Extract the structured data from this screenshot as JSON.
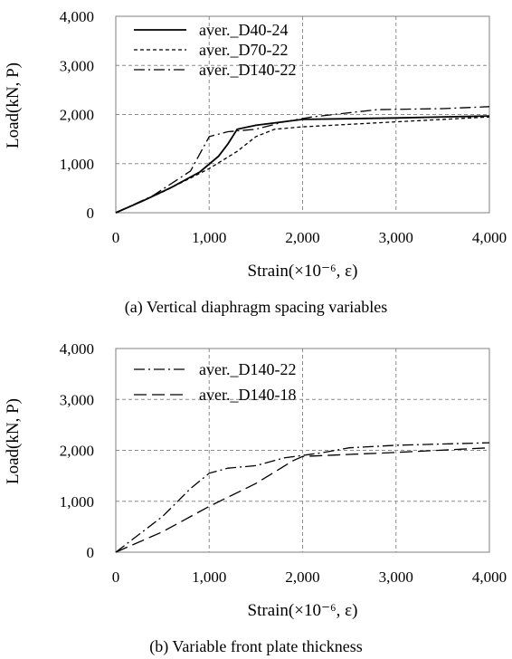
{
  "chart_data": [
    {
      "type": "line",
      "caption": "(a) Vertical diaphragm spacing variables",
      "xlabel": "Strain(×10⁻⁶,  ε)",
      "ylabel": "Load(kN, P)",
      "xlim": [
        0,
        4000
      ],
      "ylim": [
        0,
        4000
      ],
      "xticks": [
        "0",
        "1,000",
        "2,000",
        "3,000",
        "4,000"
      ],
      "yticks": [
        "0",
        "1,000",
        "2,000",
        "3,000",
        "4,000"
      ],
      "grid": true,
      "legend_position": "top-left",
      "series": [
        {
          "name": "aver._D40-24",
          "style": "solid",
          "points": [
            [
              0,
              0
            ],
            [
              300,
              250
            ],
            [
              600,
              520
            ],
            [
              900,
              830
            ],
            [
              1100,
              1150
            ],
            [
              1200,
              1400
            ],
            [
              1300,
              1700
            ],
            [
              1500,
              1780
            ],
            [
              2000,
              1900
            ],
            [
              3000,
              1930
            ],
            [
              4000,
              1970
            ]
          ]
        },
        {
          "name": "aver._D70-22",
          "style": "dashed",
          "points": [
            [
              0,
              0
            ],
            [
              500,
              420
            ],
            [
              1000,
              900
            ],
            [
              1300,
              1250
            ],
            [
              1500,
              1550
            ],
            [
              1700,
              1700
            ],
            [
              2000,
              1750
            ],
            [
              3000,
              1850
            ],
            [
              4000,
              1950
            ]
          ]
        },
        {
          "name": "aver._D140-22",
          "style": "dashdot",
          "points": [
            [
              0,
              0
            ],
            [
              400,
              350
            ],
            [
              800,
              850
            ],
            [
              1000,
              1550
            ],
            [
              1200,
              1650
            ],
            [
              1500,
              1700
            ],
            [
              1800,
              1850
            ],
            [
              2100,
              1950
            ],
            [
              2800,
              2100
            ],
            [
              3500,
              2120
            ],
            [
              4000,
              2160
            ]
          ]
        }
      ]
    },
    {
      "type": "line",
      "caption": "(b) Variable front plate thickness",
      "xlabel": "Strain(×10⁻⁶,  ε)",
      "ylabel": "Load(kN, P)",
      "xlim": [
        0,
        4000
      ],
      "ylim": [
        0,
        4000
      ],
      "xticks": [
        "0",
        "1,000",
        "2,000",
        "3,000",
        "4,000"
      ],
      "yticks": [
        "0",
        "1,000",
        "2,000",
        "3,000",
        "4,000"
      ],
      "grid": true,
      "legend_position": "top-left",
      "series": [
        {
          "name": "aver._D140-22",
          "style": "dashdot",
          "points": [
            [
              0,
              0
            ],
            [
              500,
              700
            ],
            [
              800,
              1250
            ],
            [
              1000,
              1550
            ],
            [
              1200,
              1650
            ],
            [
              1500,
              1700
            ],
            [
              1800,
              1850
            ],
            [
              2200,
              1950
            ],
            [
              2500,
              2050
            ],
            [
              3000,
              2100
            ],
            [
              4000,
              2150
            ]
          ]
        },
        {
          "name": "aver._D140-18",
          "style": "longdash",
          "points": [
            [
              0,
              0
            ],
            [
              500,
              400
            ],
            [
              1000,
              900
            ],
            [
              1500,
              1350
            ],
            [
              1900,
              1800
            ],
            [
              2000,
              1880
            ],
            [
              2500,
              1920
            ],
            [
              3000,
              1960
            ],
            [
              4000,
              2050
            ]
          ]
        }
      ]
    }
  ]
}
